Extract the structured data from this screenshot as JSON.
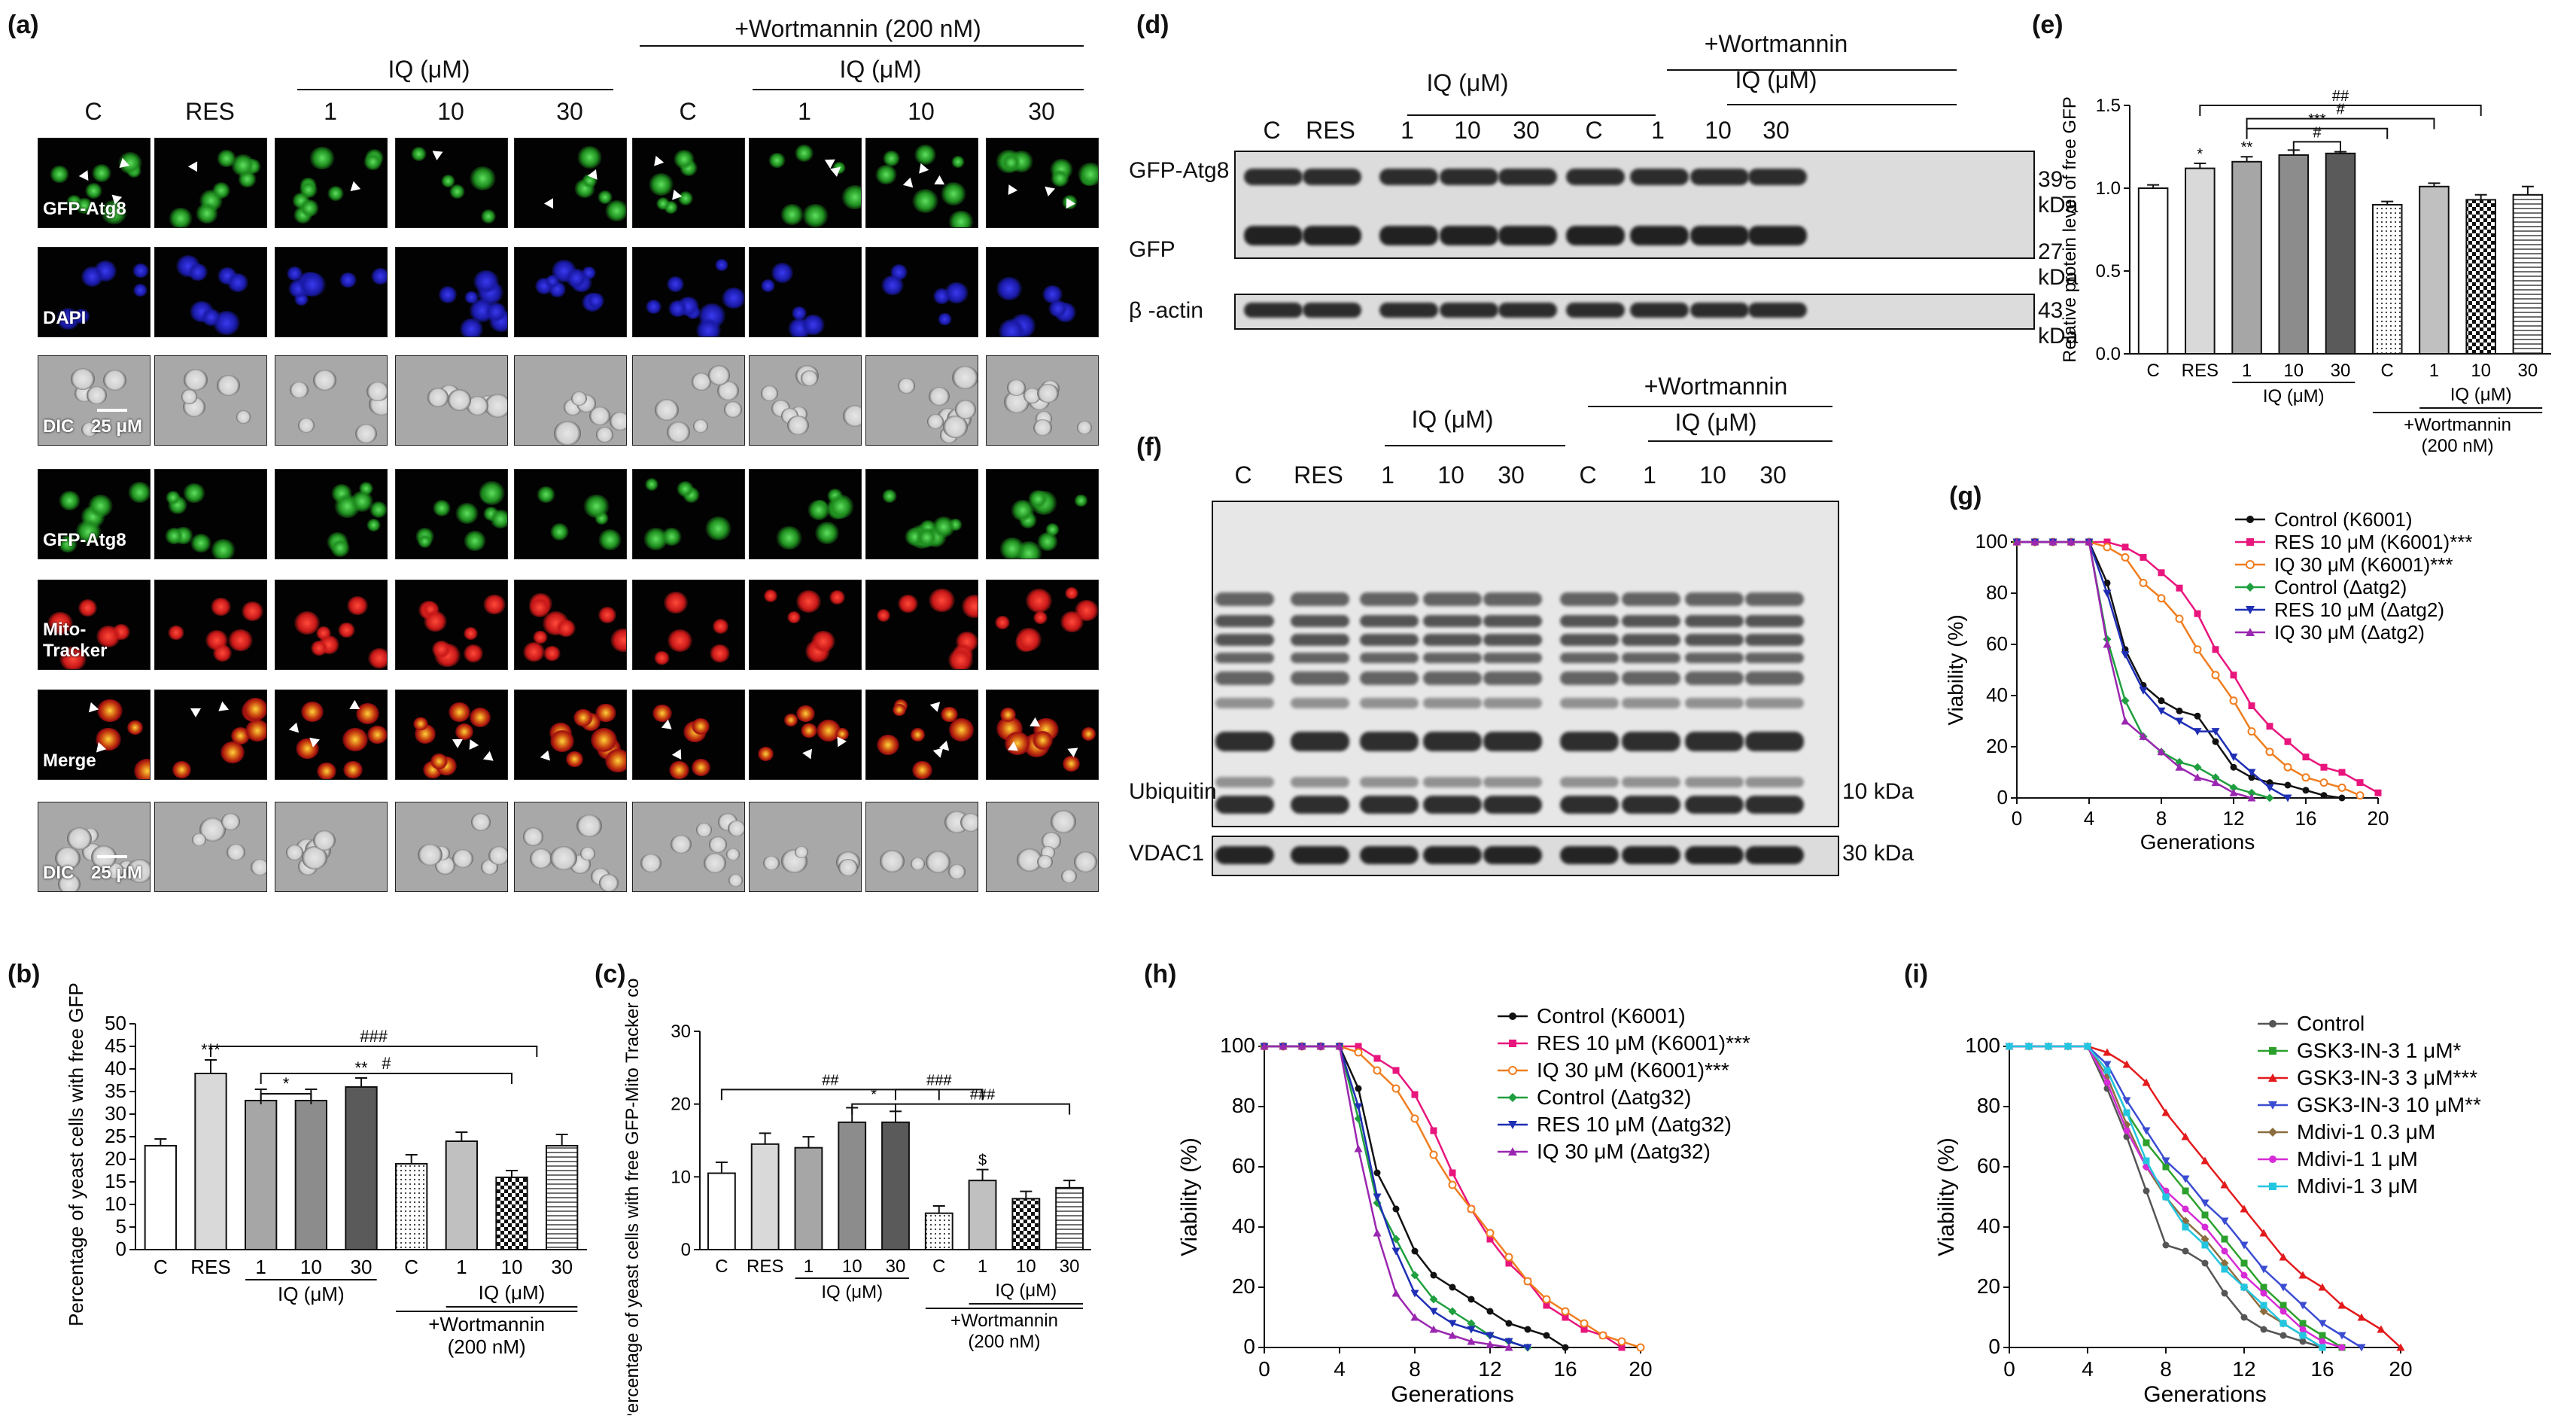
{
  "panel_labels": {
    "a": "(a)",
    "b": "(b)",
    "c": "(c)",
    "d": "(d)",
    "e": "(e)",
    "f": "(f)",
    "g": "(g)",
    "h": "(h)",
    "i": "(i)"
  },
  "panel_a": {
    "wortmannin_header": "+Wortmannin (200 nM)",
    "iq_header": "IQ (μM)",
    "columns": [
      "C",
      "RES",
      "1",
      "10",
      "30",
      "C",
      "1",
      "10",
      "30"
    ],
    "rows_top": [
      "GFP-Atg8",
      "DAPI",
      "DIC"
    ],
    "rows_bottom": [
      "GFP-Atg8",
      "Mito-Tracker",
      "Merge",
      "DIC"
    ],
    "scale_bar": "25 μM",
    "colors": {
      "gfp": "#1f8f1f",
      "dapi": "#1a1aa8",
      "mito": "#c81818",
      "dic": "#b9b9b9",
      "merge": "#cc4a10"
    }
  },
  "panel_d": {
    "wortmannin_header": "+Wortmannin",
    "iq_header": "IQ (μM)",
    "lanes": [
      "C",
      "RES",
      "1",
      "10",
      "30",
      "C",
      "1",
      "10",
      "30"
    ],
    "rows": [
      "GFP-Atg8",
      "GFP",
      "β -actin"
    ],
    "kda": [
      "39 kDa",
      "27 kDa",
      "43 kDa"
    ]
  },
  "panel_f": {
    "wortmannin_header": "+Wortmannin",
    "iq_header": "IQ (μM)",
    "lanes": [
      "C",
      "RES",
      "1",
      "10",
      "30",
      "C",
      "1",
      "10",
      "30"
    ],
    "rows": [
      "Ubiquitin",
      "VDAC1"
    ],
    "kda": [
      "10 kDa",
      "30 kDa"
    ]
  },
  "chart_data": [
    {
      "id": "b",
      "type": "bar",
      "ylabel": "Percentage of yeast cells with free GFP (%)",
      "ylim": [
        0,
        50
      ],
      "yticks": [
        0,
        5,
        10,
        15,
        20,
        25,
        30,
        35,
        40,
        45,
        50
      ],
      "categories": [
        "C",
        "RES",
        "1",
        "10",
        "30",
        "C",
        "1",
        "10",
        "30"
      ],
      "values": [
        23,
        39,
        33,
        33,
        36,
        19,
        24,
        16,
        23
      ],
      "errors": [
        1.5,
        3,
        2.5,
        2.5,
        2,
        2,
        2,
        1.5,
        2.5
      ],
      "sig": [
        "",
        "***",
        "",
        "",
        "**",
        "",
        "",
        "",
        ""
      ],
      "brackets": [
        "*",
        "#",
        "###"
      ],
      "group_labels": {
        "iq": "IQ (μM)",
        "wort": "+Wortmannin",
        "wort_conc": "(200 nM)"
      }
    },
    {
      "id": "c",
      "type": "bar",
      "ylabel": "Percentage of yeast cells with free GFP-Mito Tracker colocalization (%)",
      "ylim": [
        0,
        30
      ],
      "yticks": [
        0,
        10,
        20,
        30
      ],
      "categories": [
        "C",
        "RES",
        "1",
        "10",
        "30",
        "C",
        "1",
        "10",
        "30"
      ],
      "values": [
        10.5,
        14.5,
        14,
        17.5,
        17.5,
        5,
        9.5,
        7,
        8.5
      ],
      "errors": [
        1.5,
        1.5,
        1.5,
        2,
        1.5,
        1,
        1.5,
        1,
        1
      ],
      "sig": [
        "",
        "",
        "",
        "",
        "",
        "",
        "$",
        "",
        ""
      ],
      "brackets": [
        "##",
        "*",
        "###",
        "###"
      ],
      "group_labels": {
        "iq": "IQ (μM)",
        "wort": "+Wortmannin",
        "wort_conc": "(200 nM)"
      }
    },
    {
      "id": "e",
      "type": "bar",
      "ylabel": "Relative protein level of free GFP",
      "ylim": [
        0,
        1.5
      ],
      "yticks": [
        0.0,
        0.5,
        1.0,
        1.5
      ],
      "categories": [
        "C",
        "RES",
        "1",
        "10",
        "30",
        "C",
        "1",
        "10",
        "30"
      ],
      "values": [
        1.0,
        1.12,
        1.16,
        1.2,
        1.21,
        0.9,
        1.01,
        0.93,
        0.96
      ],
      "errors": [
        0.02,
        0.03,
        0.03,
        0.03,
        0.01,
        0.02,
        0.02,
        0.03,
        0.05
      ],
      "sig": [
        "",
        "*",
        "**",
        "",
        "",
        "",
        "",
        "",
        ""
      ],
      "brackets": [
        "#",
        "***",
        "#",
        "##"
      ],
      "group_labels": {
        "iq": "IQ (μM)",
        "wort": "+Wortmannin",
        "wort_conc": "(200 nM)"
      }
    },
    {
      "id": "g",
      "type": "line",
      "xlabel": "Generations",
      "ylabel": "Viability (%)",
      "xlim": [
        0,
        20
      ],
      "ylim": [
        0,
        100
      ],
      "xticks": [
        0,
        4,
        8,
        12,
        16,
        20
      ],
      "yticks": [
        0,
        20,
        40,
        60,
        80,
        100
      ],
      "legend_position": "top-right",
      "series": [
        {
          "name": "Control (K6001)",
          "color": "#111111",
          "marker": "circle",
          "x": [
            0,
            1,
            2,
            3,
            4,
            5,
            6,
            7,
            8,
            9,
            10,
            11,
            12,
            13,
            14,
            15,
            16,
            17,
            18
          ],
          "y": [
            100,
            100,
            100,
            100,
            100,
            84,
            58,
            44,
            38,
            34,
            32,
            22,
            12,
            8,
            6,
            5,
            3,
            1,
            0
          ]
        },
        {
          "name": "RES 10 μM (K6001)***",
          "color": "#e8157d",
          "marker": "square",
          "x": [
            0,
            1,
            2,
            3,
            4,
            5,
            6,
            7,
            8,
            9,
            10,
            11,
            12,
            13,
            14,
            15,
            16,
            17,
            18,
            19,
            20
          ],
          "y": [
            100,
            100,
            100,
            100,
            100,
            100,
            98,
            94,
            88,
            82,
            72,
            58,
            48,
            36,
            28,
            22,
            16,
            12,
            10,
            6,
            2
          ]
        },
        {
          "name": "IQ 30 μM (K6001)***",
          "color": "#f07d1e",
          "marker": "circle-open",
          "x": [
            0,
            1,
            2,
            3,
            4,
            5,
            6,
            7,
            8,
            9,
            10,
            11,
            12,
            13,
            14,
            15,
            16,
            17,
            18,
            19
          ],
          "y": [
            100,
            100,
            100,
            100,
            100,
            98,
            94,
            84,
            78,
            70,
            58,
            48,
            38,
            26,
            18,
            12,
            8,
            6,
            4,
            1
          ]
        },
        {
          "name": "Control (Δatg2)",
          "color": "#1f9f3f",
          "marker": "diamond",
          "x": [
            0,
            1,
            2,
            3,
            4,
            5,
            6,
            7,
            8,
            9,
            10,
            11,
            12,
            13,
            14
          ],
          "y": [
            100,
            100,
            100,
            100,
            100,
            62,
            38,
            24,
            18,
            14,
            12,
            8,
            4,
            2,
            0
          ]
        },
        {
          "name": "RES 10 μM (Δatg2)",
          "color": "#1f2fb5",
          "marker": "triangle-down",
          "x": [
            0,
            1,
            2,
            3,
            4,
            5,
            6,
            7,
            8,
            9,
            10,
            11,
            12,
            13,
            14,
            15
          ],
          "y": [
            100,
            100,
            100,
            100,
            100,
            80,
            56,
            42,
            34,
            30,
            26,
            26,
            16,
            10,
            4,
            0
          ]
        },
        {
          "name": "IQ 30 μM (Δatg2)",
          "color": "#9a27b0",
          "marker": "triangle",
          "x": [
            0,
            1,
            2,
            3,
            4,
            5,
            6,
            7,
            8,
            9,
            10,
            11,
            12,
            13
          ],
          "y": [
            100,
            100,
            100,
            100,
            100,
            60,
            30,
            24,
            18,
            12,
            8,
            6,
            2,
            0
          ]
        }
      ]
    },
    {
      "id": "h",
      "type": "line",
      "xlabel": "Generations",
      "ylabel": "Viability (%)",
      "xlim": [
        0,
        20
      ],
      "ylim": [
        0,
        100
      ],
      "xticks": [
        0,
        4,
        8,
        12,
        16,
        20
      ],
      "yticks": [
        0,
        20,
        40,
        60,
        80,
        100
      ],
      "legend_position": "top-right",
      "series": [
        {
          "name": "Control (K6001)",
          "color": "#111111",
          "marker": "circle",
          "x": [
            0,
            1,
            2,
            3,
            4,
            5,
            6,
            7,
            8,
            9,
            10,
            11,
            12,
            13,
            14,
            15,
            16
          ],
          "y": [
            100,
            100,
            100,
            100,
            100,
            86,
            58,
            46,
            32,
            24,
            20,
            16,
            12,
            8,
            6,
            4,
            0
          ]
        },
        {
          "name": "RES 10 μM (K6001)***",
          "color": "#e8157d",
          "marker": "square",
          "x": [
            0,
            1,
            2,
            3,
            4,
            5,
            6,
            7,
            8,
            9,
            10,
            11,
            12,
            13,
            14,
            15,
            16,
            17,
            18,
            19
          ],
          "y": [
            100,
            100,
            100,
            100,
            100,
            100,
            96,
            92,
            84,
            72,
            58,
            46,
            36,
            28,
            22,
            14,
            10,
            6,
            4,
            0
          ]
        },
        {
          "name": "IQ 30 μM (K6001)***",
          "color": "#f07d1e",
          "marker": "circle-open",
          "x": [
            0,
            1,
            2,
            3,
            4,
            5,
            6,
            7,
            8,
            9,
            10,
            11,
            12,
            13,
            14,
            15,
            16,
            17,
            18,
            19,
            20
          ],
          "y": [
            100,
            100,
            100,
            100,
            100,
            98,
            92,
            86,
            76,
            64,
            54,
            46,
            38,
            30,
            22,
            16,
            12,
            8,
            4,
            2,
            0
          ]
        },
        {
          "name": "Control (Δatg32)",
          "color": "#1f9f3f",
          "marker": "diamond",
          "x": [
            0,
            1,
            2,
            3,
            4,
            5,
            6,
            7,
            8,
            9,
            10,
            11,
            12,
            13,
            14
          ],
          "y": [
            100,
            100,
            100,
            100,
            100,
            76,
            48,
            36,
            24,
            16,
            12,
            8,
            4,
            2,
            0
          ]
        },
        {
          "name": "RES 10 μM (Δatg32)",
          "color": "#1f2fb5",
          "marker": "triangle-down",
          "x": [
            0,
            1,
            2,
            3,
            4,
            5,
            6,
            7,
            8,
            9,
            10,
            11,
            12,
            13,
            14
          ],
          "y": [
            100,
            100,
            100,
            100,
            100,
            80,
            50,
            32,
            18,
            12,
            8,
            6,
            4,
            2,
            0
          ]
        },
        {
          "name": "IQ 30 μM (Δatg32)",
          "color": "#9a27b0",
          "marker": "triangle",
          "x": [
            0,
            1,
            2,
            3,
            4,
            5,
            6,
            7,
            8,
            9,
            10,
            11,
            12,
            13
          ],
          "y": [
            100,
            100,
            100,
            100,
            100,
            66,
            38,
            18,
            10,
            6,
            4,
            2,
            1,
            0
          ]
        }
      ]
    },
    {
      "id": "i",
      "type": "line",
      "xlabel": "Generations",
      "ylabel": "Viability (%)",
      "xlim": [
        0,
        20
      ],
      "ylim": [
        0,
        100
      ],
      "xticks": [
        0,
        4,
        8,
        12,
        16,
        20
      ],
      "yticks": [
        0,
        20,
        40,
        60,
        80,
        100
      ],
      "legend_position": "top-right",
      "series": [
        {
          "name": "Control",
          "color": "#555555",
          "marker": "circle",
          "x": [
            0,
            1,
            2,
            3,
            4,
            5,
            6,
            7,
            8,
            9,
            10,
            11,
            12,
            13,
            14,
            15,
            16
          ],
          "y": [
            100,
            100,
            100,
            100,
            100,
            86,
            70,
            52,
            34,
            32,
            28,
            18,
            10,
            6,
            4,
            2,
            0
          ]
        },
        {
          "name": "GSK3-IN-3  1 μM*",
          "color": "#2ca02c",
          "marker": "square",
          "x": [
            0,
            1,
            2,
            3,
            4,
            5,
            6,
            7,
            8,
            9,
            10,
            11,
            12,
            13,
            14,
            15,
            16,
            17
          ],
          "y": [
            100,
            100,
            100,
            100,
            100,
            92,
            78,
            68,
            60,
            52,
            44,
            36,
            28,
            20,
            14,
            8,
            4,
            0
          ]
        },
        {
          "name": "GSK3-IN-3  3 μM***",
          "color": "#e31a1c",
          "marker": "triangle",
          "x": [
            0,
            1,
            2,
            3,
            4,
            5,
            6,
            7,
            8,
            9,
            10,
            11,
            12,
            13,
            14,
            15,
            16,
            17,
            18,
            19,
            20
          ],
          "y": [
            100,
            100,
            100,
            100,
            100,
            98,
            94,
            88,
            78,
            70,
            62,
            54,
            46,
            38,
            30,
            24,
            20,
            14,
            10,
            6,
            0
          ]
        },
        {
          "name": "GSK3-IN-3  10 μM**",
          "color": "#3b4cd1",
          "marker": "triangle-down",
          "x": [
            0,
            1,
            2,
            3,
            4,
            5,
            6,
            7,
            8,
            9,
            10,
            11,
            12,
            13,
            14,
            15,
            16,
            17,
            18
          ],
          "y": [
            100,
            100,
            100,
            100,
            100,
            94,
            82,
            72,
            62,
            56,
            48,
            42,
            34,
            26,
            20,
            14,
            8,
            4,
            0
          ]
        },
        {
          "name": "Mdivi-1  0.3 μM",
          "color": "#8c6d3f",
          "marker": "diamond",
          "x": [
            0,
            1,
            2,
            3,
            4,
            5,
            6,
            7,
            8,
            9,
            10,
            11,
            12,
            13,
            14,
            15,
            16
          ],
          "y": [
            100,
            100,
            100,
            100,
            100,
            90,
            74,
            60,
            50,
            42,
            36,
            28,
            20,
            12,
            8,
            4,
            0
          ]
        },
        {
          "name": "Mdivi-1 1 μM",
          "color": "#d62bd6",
          "marker": "circle",
          "x": [
            0,
            1,
            2,
            3,
            4,
            5,
            6,
            7,
            8,
            9,
            10,
            11,
            12,
            13,
            14,
            15,
            16,
            17
          ],
          "y": [
            100,
            100,
            100,
            100,
            100,
            88,
            72,
            60,
            52,
            46,
            40,
            32,
            24,
            18,
            12,
            6,
            2,
            0
          ]
        },
        {
          "name": "Mdivi-1 3 μM",
          "color": "#22c6e0",
          "marker": "square",
          "x": [
            0,
            1,
            2,
            3,
            4,
            5,
            6,
            7,
            8,
            9,
            10,
            11,
            12,
            13,
            14,
            15,
            16
          ],
          "y": [
            100,
            100,
            100,
            100,
            100,
            92,
            78,
            62,
            50,
            40,
            34,
            26,
            20,
            14,
            8,
            4,
            0
          ]
        }
      ]
    }
  ]
}
